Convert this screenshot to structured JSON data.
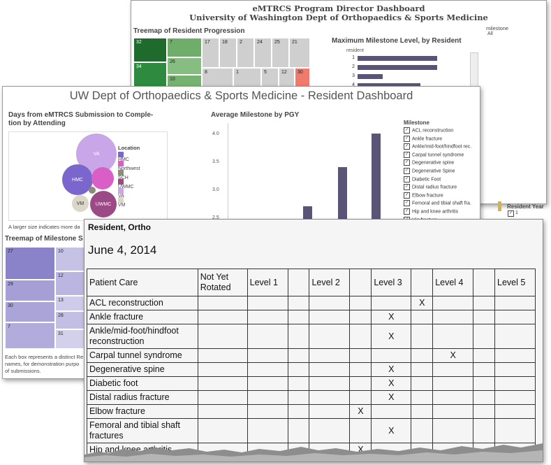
{
  "program_dashboard": {
    "title_line1": "eMTRCS Program Director Dashboard",
    "title_line2": "University of Washington Dept of Orthopaedics & Sports Medicine",
    "treemap_title": "Treemap of Resident Progression",
    "treemap_labels": [
      "32",
      "7",
      "17",
      "18",
      "2",
      "24",
      "25",
      "21",
      "26",
      "34",
      "10",
      "8",
      "1",
      "5",
      "12",
      "30"
    ],
    "bar_chart_title": "Maximum Milestone Level, by Resident",
    "bar_axis_label": "resident",
    "bar_rows": [
      {
        "label": "1",
        "value": 0.95
      },
      {
        "label": "2",
        "value": 0.95
      },
      {
        "label": "3",
        "value": 0.3
      },
      {
        "label": "4",
        "value": 0.75
      }
    ],
    "filter_label": "milestone",
    "filter_value": "All"
  },
  "resident_dashboard": {
    "title": "UW Dept of Orthopaedics & Sports Medicine - Resident Dashboard",
    "bubble_title": "Days from eMTRCS Submission to Completion by Attending",
    "bubble_title_line1": "Days from eMTRCS Submission to Comple-",
    "bubble_title_line2": "tion by Attending",
    "bubbles": [
      {
        "label": "VA",
        "color": "#c9a6e8"
      },
      {
        "label": "HMC",
        "color": "#7a66cc"
      },
      {
        "label": "",
        "color": "#d95fc6"
      },
      {
        "label": "",
        "color": "#8c8c7a"
      },
      {
        "label": "VM",
        "color": "#dcd6c8"
      },
      {
        "label": "UWMC",
        "color": "#9b4a85"
      }
    ],
    "location_legend_title": "Location",
    "location_legend": [
      {
        "label": "HMC",
        "color": "#7a66cc"
      },
      {
        "label": "Northwest",
        "color": "#d95fc6"
      },
      {
        "label": "SCH",
        "color": "#8c8c7a"
      },
      {
        "label": "UWMC",
        "color": "#9b4a85"
      },
      {
        "label": "VA",
        "color": "#c9a6e8"
      },
      {
        "label": "VM",
        "color": "#dcd6c8"
      }
    ],
    "bubble_note": "A larger size indicates more da",
    "avg_chart_title": "Average Milestone by PGY",
    "avg_ticks": [
      "4.0",
      "3.5",
      "3.0",
      "2.5"
    ],
    "avg_bars": [
      2.7,
      3.4,
      4.0
    ],
    "milestone_legend_title": "Milestone",
    "milestone_items": [
      "ACL reconstruction",
      "Ankle fracture",
      "Ankle/mid-foot/hindfoot rec.",
      "Carpal tunnel syndrome",
      "Degenerative spine",
      "Degenerative Spine",
      "Diabetic Foot",
      "Distal radius fracture",
      "Elbow fracture",
      "Femoral and tibial shaft fra.",
      "Hip and knee arthritis",
      "Hip fracture"
    ],
    "resident_year_label": "Resident Year",
    "resident_year_item": "1",
    "treemap2_title": "Treemap of Milestone S",
    "treemap2_labels": [
      "27",
      "10",
      "12",
      "29",
      "30",
      "13",
      "28",
      "7",
      "31"
    ],
    "treemap2_note_line1": "Each box represents a distinct Re",
    "treemap2_note_line2": "names, for demonstration purpo",
    "treemap2_note_line3": "of submissions."
  },
  "resident_report": {
    "heading": "Resident, Ortho",
    "date": "June 4, 2014",
    "columns": [
      "Patient Care",
      "Not Yet Rotated",
      "Level 1",
      "",
      "Level 2",
      "",
      "Level 3",
      "",
      "Level 4",
      "",
      "Level 5"
    ],
    "rows": [
      {
        "name": "ACL reconstruction",
        "mark_col": 7
      },
      {
        "name": "Ankle fracture",
        "mark_col": 6
      },
      {
        "name": "Ankle/mid-foot/hindfoot reconstruction",
        "mark_col": 6
      },
      {
        "name": "Carpal tunnel syndrome",
        "mark_col": 8
      },
      {
        "name": "Degenerative spine",
        "mark_col": 6
      },
      {
        "name": "Diabetic foot",
        "mark_col": 6
      },
      {
        "name": "Distal radius fracture",
        "mark_col": 6
      },
      {
        "name": "Elbow fracture",
        "mark_col": 5
      },
      {
        "name": "Femoral and tibial shaft fractures",
        "mark_col": 6
      },
      {
        "name": "Hip and knee arthritis",
        "mark_col": 5
      }
    ],
    "mark": "X"
  }
}
